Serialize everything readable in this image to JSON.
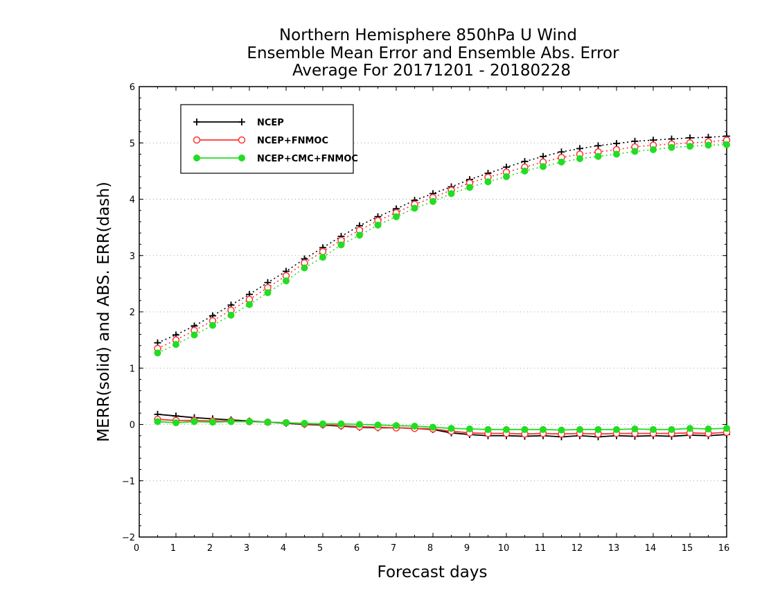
{
  "chart_data": {
    "type": "line",
    "title_lines": [
      "Northern Hemisphere 850hPa U Wind",
      "Ensemble Mean Error and Ensemble Abs. Error",
      "Average For 20171201 - 20180228"
    ],
    "xlabel": "Forecast days",
    "ylabel": "MERR(solid) and ABS. ERR(dash)",
    "xlim": [
      0,
      16
    ],
    "ylim": [
      -2,
      6
    ],
    "xticks": [
      0,
      1,
      2,
      3,
      4,
      5,
      6,
      7,
      8,
      9,
      10,
      11,
      12,
      13,
      14,
      15,
      16
    ],
    "yticks": [
      -2,
      -1,
      0,
      1,
      2,
      3,
      4,
      5,
      6
    ],
    "grid": "horizontal dotted",
    "legend_position": "top-left",
    "x": [
      0.5,
      1,
      1.5,
      2,
      2.5,
      3,
      3.5,
      4,
      4.5,
      5,
      5.5,
      6,
      6.5,
      7,
      7.5,
      8,
      8.5,
      9,
      9.5,
      10,
      10.5,
      11,
      11.5,
      12,
      12.5,
      13,
      13.5,
      14,
      14.5,
      15,
      15.5,
      16
    ],
    "series": [
      {
        "name": "NCEP",
        "color": "#000000",
        "marker": "plus",
        "abs_err": [
          1.45,
          1.59,
          1.75,
          1.93,
          2.12,
          2.31,
          2.52,
          2.72,
          2.94,
          3.14,
          3.34,
          3.53,
          3.69,
          3.83,
          3.98,
          4.1,
          4.22,
          4.35,
          4.46,
          4.57,
          4.67,
          4.76,
          4.84,
          4.9,
          4.95,
          4.99,
          5.03,
          5.05,
          5.07,
          5.09,
          5.1,
          5.12
        ],
        "mean_err": [
          0.18,
          0.15,
          0.12,
          0.1,
          0.08,
          0.06,
          0.04,
          0.02,
          0.0,
          -0.01,
          -0.03,
          -0.05,
          -0.06,
          -0.06,
          -0.07,
          -0.09,
          -0.15,
          -0.18,
          -0.2,
          -0.2,
          -0.21,
          -0.2,
          -0.22,
          -0.2,
          -0.22,
          -0.2,
          -0.21,
          -0.2,
          -0.21,
          -0.19,
          -0.2,
          -0.18
        ]
      },
      {
        "name": "NCEP+FNMOC",
        "color": "#ff3333",
        "marker": "open-circle",
        "abs_err": [
          1.35,
          1.5,
          1.67,
          1.84,
          2.03,
          2.22,
          2.43,
          2.64,
          2.87,
          3.07,
          3.27,
          3.45,
          3.62,
          3.76,
          3.91,
          4.03,
          4.16,
          4.29,
          4.39,
          4.48,
          4.57,
          4.66,
          4.74,
          4.8,
          4.84,
          4.88,
          4.93,
          4.96,
          4.98,
          5.0,
          5.02,
          5.05
        ],
        "mean_err": [
          0.09,
          0.07,
          0.07,
          0.06,
          0.06,
          0.05,
          0.04,
          0.03,
          0.01,
          0.0,
          -0.02,
          -0.04,
          -0.05,
          -0.06,
          -0.07,
          -0.08,
          -0.12,
          -0.15,
          -0.16,
          -0.16,
          -0.17,
          -0.16,
          -0.17,
          -0.16,
          -0.17,
          -0.16,
          -0.16,
          -0.16,
          -0.16,
          -0.15,
          -0.16,
          -0.14
        ]
      },
      {
        "name": "NCEP+CMC+FNMOC",
        "color": "#22dd22",
        "marker": "filled-circle",
        "abs_err": [
          1.27,
          1.42,
          1.59,
          1.76,
          1.94,
          2.13,
          2.34,
          2.55,
          2.78,
          2.97,
          3.19,
          3.36,
          3.54,
          3.69,
          3.84,
          3.96,
          4.1,
          4.21,
          4.31,
          4.4,
          4.5,
          4.58,
          4.66,
          4.72,
          4.76,
          4.8,
          4.85,
          4.88,
          4.92,
          4.94,
          4.96,
          4.97
        ],
        "mean_err": [
          0.05,
          0.03,
          0.05,
          0.04,
          0.05,
          0.05,
          0.04,
          0.03,
          0.02,
          0.01,
          0.01,
          0.0,
          -0.01,
          -0.02,
          -0.03,
          -0.05,
          -0.07,
          -0.08,
          -0.09,
          -0.09,
          -0.09,
          -0.09,
          -0.1,
          -0.09,
          -0.09,
          -0.09,
          -0.08,
          -0.09,
          -0.09,
          -0.07,
          -0.08,
          -0.07
        ]
      }
    ]
  }
}
